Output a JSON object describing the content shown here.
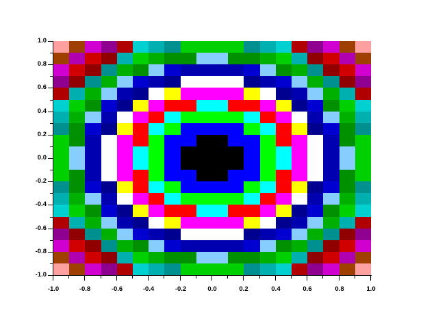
{
  "figure": {
    "background": "#FFFFFF",
    "axis_color": "#000000",
    "label_color": "#000000"
  },
  "chart_data": {
    "type": "heatmap",
    "title": "",
    "xlabel": "",
    "ylabel": "",
    "x_range": [
      -1.0,
      1.0
    ],
    "y_range": [
      -1.0,
      1.0
    ],
    "grid_rows": 20,
    "grid_cols": 20,
    "cell_size_units": 0.1,
    "x_tick_labels": [
      "-1.0",
      "-0.8",
      "-0.6",
      "-0.4",
      "-0.2",
      "0.0",
      "0.2",
      "0.4",
      "0.6",
      "0.8",
      "1.0"
    ],
    "y_tick_labels": [
      "1.0",
      "0.8",
      "0.6",
      "0.4",
      "0.2",
      "0.0",
      "-0.2",
      "-0.4",
      "-0.6",
      "-0.8",
      "-1.0"
    ],
    "minor_ticks_between_majors": 1,
    "grid_lines": false,
    "legend": null,
    "palette": {
      "K": "#000000",
      "B": "#0000FF",
      "G": "#00FF00",
      "C": "#00FFFF",
      "R": "#FF0000",
      "M": "#FF00FF",
      "Y": "#FFFF00",
      "W": "#FFFFFF",
      "b4": "#000090",
      "b3": "#0000B0",
      "b2": "#0000D0",
      "lb": "#87CEFF",
      "g4": "#009000",
      "g3": "#00B000",
      "g2": "#00D000",
      "c4": "#009090",
      "c3": "#00B0B0",
      "c2": "#00D0D0",
      "r4": "#900000",
      "r3": "#B00000",
      "r2": "#D00000",
      "m4": "#900090",
      "m3": "#B000B0",
      "m2": "#D000D0",
      "br": "#A04000",
      "pk": "#FFA0A0"
    },
    "cells": [
      [
        "pk",
        "br",
        "m2",
        "m4",
        "r3",
        "c2",
        "c3",
        "c4",
        "g2",
        "g2",
        "g2",
        "g2",
        "c4",
        "c3",
        "c2",
        "r3",
        "m4",
        "m2",
        "br",
        "pk"
      ],
      [
        "br",
        "m3",
        "r2",
        "r4",
        "c3",
        "g2",
        "g3",
        "g4",
        "g4",
        "lb",
        "lb",
        "g4",
        "g4",
        "g3",
        "g2",
        "c3",
        "r4",
        "r2",
        "m3",
        "br"
      ],
      [
        "m2",
        "r2",
        "r4",
        "c4",
        "g3",
        "g4",
        "lb",
        "b2",
        "b3",
        "b3",
        "b3",
        "b3",
        "b2",
        "lb",
        "g4",
        "g3",
        "c4",
        "r4",
        "r2",
        "m2"
      ],
      [
        "m4",
        "r4",
        "c4",
        "g3",
        "lb",
        "b2",
        "b3",
        "b4",
        "W",
        "W",
        "W",
        "W",
        "b4",
        "b3",
        "b2",
        "lb",
        "g3",
        "c4",
        "r4",
        "m4"
      ],
      [
        "r3",
        "c3",
        "g3",
        "lb",
        "b3",
        "b4",
        "W",
        "Y",
        "M",
        "M",
        "M",
        "M",
        "Y",
        "W",
        "b4",
        "b3",
        "lb",
        "g3",
        "c3",
        "r3"
      ],
      [
        "c2",
        "g2",
        "g4",
        "b2",
        "b4",
        "Y",
        "M",
        "R",
        "R",
        "C",
        "C",
        "R",
        "R",
        "M",
        "Y",
        "b4",
        "b2",
        "g4",
        "g2",
        "c2"
      ],
      [
        "c3",
        "g3",
        "lb",
        "b3",
        "W",
        "M",
        "R",
        "C",
        "G",
        "G",
        "G",
        "G",
        "C",
        "R",
        "M",
        "W",
        "b3",
        "lb",
        "g3",
        "c3"
      ],
      [
        "c4",
        "g4",
        "b2",
        "b4",
        "Y",
        "R",
        "C",
        "G",
        "B",
        "B",
        "B",
        "B",
        "G",
        "C",
        "R",
        "Y",
        "b4",
        "b2",
        "g4",
        "c4"
      ],
      [
        "g2",
        "g4",
        "b3",
        "W",
        "M",
        "R",
        "G",
        "B",
        "B",
        "K",
        "K",
        "B",
        "B",
        "G",
        "R",
        "M",
        "W",
        "b3",
        "g4",
        "g2"
      ],
      [
        "g2",
        "lb",
        "b3",
        "W",
        "M",
        "C",
        "G",
        "B",
        "K",
        "K",
        "K",
        "K",
        "B",
        "G",
        "C",
        "M",
        "W",
        "b3",
        "lb",
        "g2"
      ],
      [
        "g2",
        "lb",
        "b3",
        "W",
        "M",
        "C",
        "G",
        "B",
        "K",
        "K",
        "K",
        "K",
        "B",
        "G",
        "C",
        "M",
        "W",
        "b3",
        "lb",
        "g2"
      ],
      [
        "g2",
        "g4",
        "b3",
        "W",
        "M",
        "R",
        "G",
        "B",
        "B",
        "K",
        "K",
        "B",
        "B",
        "G",
        "R",
        "M",
        "W",
        "b3",
        "g4",
        "g2"
      ],
      [
        "c4",
        "g4",
        "b2",
        "b4",
        "Y",
        "R",
        "C",
        "G",
        "B",
        "B",
        "B",
        "B",
        "G",
        "C",
        "R",
        "Y",
        "b4",
        "b2",
        "g4",
        "c4"
      ],
      [
        "c3",
        "g3",
        "lb",
        "b3",
        "W",
        "M",
        "R",
        "C",
        "G",
        "G",
        "G",
        "G",
        "C",
        "R",
        "M",
        "W",
        "b3",
        "lb",
        "g3",
        "c3"
      ],
      [
        "c2",
        "g2",
        "g4",
        "b2",
        "b4",
        "Y",
        "M",
        "R",
        "R",
        "C",
        "C",
        "R",
        "R",
        "M",
        "Y",
        "b4",
        "b2",
        "g4",
        "g2",
        "c2"
      ],
      [
        "r3",
        "c3",
        "g3",
        "lb",
        "b3",
        "b4",
        "W",
        "Y",
        "M",
        "M",
        "M",
        "M",
        "Y",
        "W",
        "b4",
        "b3",
        "lb",
        "g3",
        "c3",
        "r3"
      ],
      [
        "m4",
        "r4",
        "c4",
        "g3",
        "lb",
        "b2",
        "b3",
        "b4",
        "W",
        "W",
        "W",
        "W",
        "b4",
        "b3",
        "b2",
        "lb",
        "g3",
        "c4",
        "r4",
        "m4"
      ],
      [
        "m2",
        "r2",
        "r4",
        "c4",
        "g3",
        "g4",
        "lb",
        "b2",
        "b3",
        "b3",
        "b3",
        "b3",
        "b2",
        "lb",
        "g4",
        "g3",
        "c4",
        "r4",
        "r2",
        "m2"
      ],
      [
        "br",
        "m3",
        "r2",
        "r4",
        "c3",
        "g2",
        "g3",
        "g4",
        "g4",
        "lb",
        "lb",
        "g4",
        "g4",
        "g3",
        "g2",
        "c3",
        "r4",
        "r2",
        "m3",
        "br"
      ],
      [
        "pk",
        "br",
        "m2",
        "m4",
        "r3",
        "c2",
        "c3",
        "c4",
        "g2",
        "g2",
        "g2",
        "g2",
        "c4",
        "c3",
        "c2",
        "r3",
        "m4",
        "m2",
        "br",
        "pk"
      ]
    ]
  }
}
